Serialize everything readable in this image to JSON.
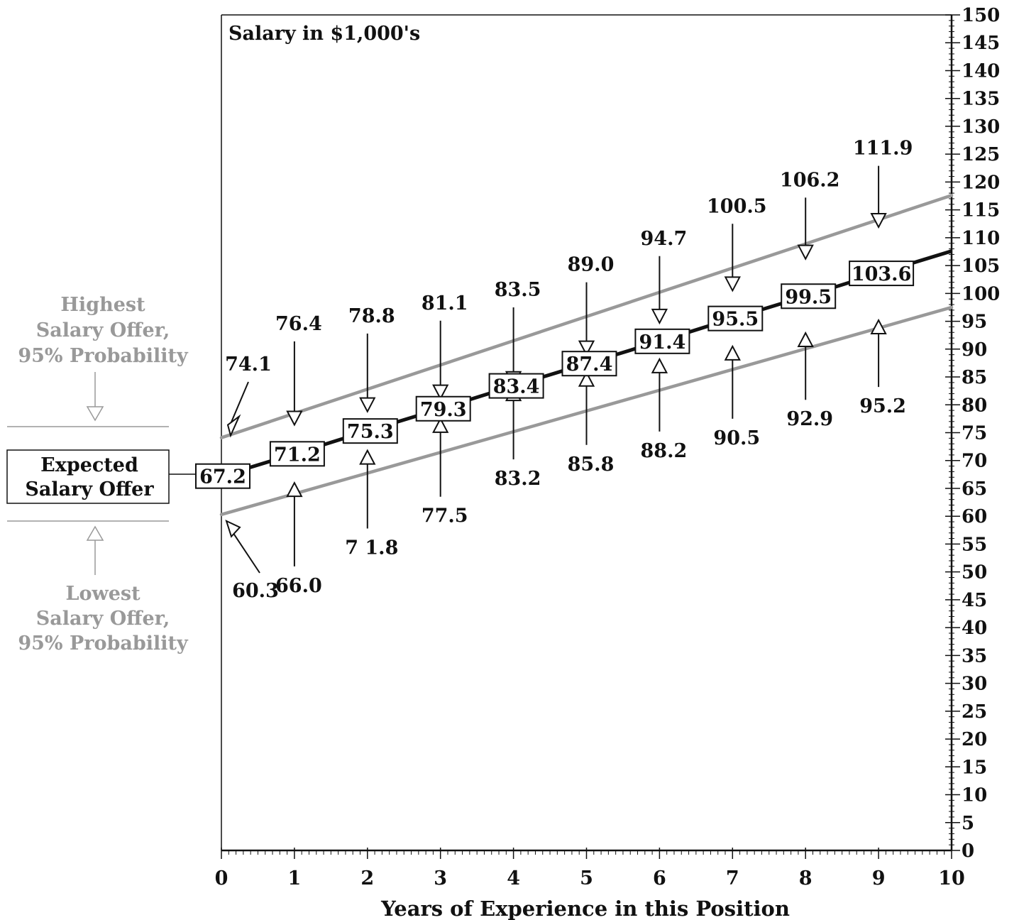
{
  "chart_data": {
    "type": "line",
    "title": "",
    "ylabel": "Salary in $1,000's",
    "xlabel": "Years of Experience in this Position",
    "xlim": [
      0,
      10
    ],
    "ylim": [
      0,
      150
    ],
    "x_ticks": [
      0,
      1,
      2,
      3,
      4,
      5,
      6,
      7,
      8,
      9,
      10
    ],
    "y_ticks": [
      0,
      5,
      10,
      15,
      20,
      25,
      30,
      35,
      40,
      45,
      50,
      55,
      60,
      65,
      70,
      75,
      80,
      85,
      90,
      95,
      100,
      105,
      110,
      115,
      120,
      125,
      130,
      135,
      140,
      145,
      150
    ],
    "y_axis_side": "right",
    "grid": false,
    "series": [
      {
        "name": "Expected Salary Offer",
        "color": "#111111",
        "x": [
          0,
          1,
          2,
          3,
          4,
          5,
          6,
          7,
          8,
          9,
          10
        ],
        "values": [
          67.2,
          71.2,
          75.3,
          79.3,
          83.4,
          87.4,
          91.4,
          95.5,
          99.5,
          103.6,
          107.6
        ],
        "labeled_values": [
          "67.2",
          "71.2",
          "75.3",
          "79.3",
          "83.4",
          "87.4",
          "91.4",
          "95.5",
          "99.5",
          "103.6"
        ]
      },
      {
        "name": "Highest Salary Offer, 95% Probability",
        "color": "#999999",
        "x": [
          0,
          1,
          2,
          3,
          4,
          5,
          6,
          7,
          8,
          9,
          10
        ],
        "values": [
          74.1,
          76.4,
          78.8,
          81.1,
          83.5,
          89.0,
          94.7,
          100.5,
          106.2,
          111.9,
          117.6
        ],
        "labeled_values": [
          "74.1",
          "76.4",
          "78.8",
          "81.1",
          "83.5",
          "89.0",
          "94.7",
          "100.5",
          "106.2",
          "111.9"
        ]
      },
      {
        "name": "Lowest Salary Offer, 95% Probability",
        "color": "#999999",
        "x": [
          0,
          1,
          2,
          3,
          4,
          5,
          6,
          7,
          8,
          9,
          10
        ],
        "values": [
          60.3,
          66.0,
          71.8,
          77.5,
          83.2,
          85.8,
          88.2,
          90.5,
          92.9,
          95.2,
          97.5
        ],
        "labeled_values": [
          "60.3",
          "66.0",
          "7 1.8",
          "77.5",
          "83.2",
          "85.8",
          "88.2",
          "90.5",
          "92.9",
          "95.2"
        ]
      }
    ],
    "legend": {
      "placement": "left",
      "highest_label_lines": [
        "Highest",
        "Salary Offer,",
        "95% Probability"
      ],
      "expected_label_lines": [
        "Expected",
        "Salary Offer"
      ],
      "lowest_label_lines": [
        "Lowest",
        "Salary Offer,",
        "95% Probability"
      ]
    }
  }
}
